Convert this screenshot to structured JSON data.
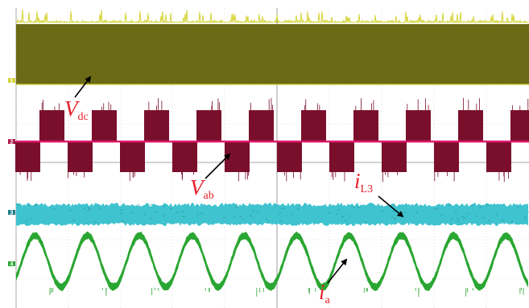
{
  "chart_data": {
    "type": "line",
    "title": "",
    "xlabel": "",
    "ylabel": "",
    "grid": true,
    "series": [
      {
        "name": "Vdc",
        "shape": "dc",
        "color": "#6b6b16",
        "edge_color": "#d6d43a",
        "channel_marker": "1",
        "marker_color": "#d6d43a"
      },
      {
        "name": "Vab",
        "shape": "bipolar-pwm",
        "color": "#7a0f2c",
        "edge_color": "#e0176a",
        "periods_shown": 10,
        "channel_marker": "2",
        "marker_color": "#b0184a"
      },
      {
        "name": "iL3",
        "shape": "dc-ripple",
        "color": "#3fc3cf",
        "channel_marker": "3",
        "marker_color": "#1a7d87"
      },
      {
        "name": "ia",
        "shape": "sinusoid",
        "color": "#2aa632",
        "periods_shown": 10,
        "channel_marker": "4",
        "marker_color": "#2aa632"
      }
    ],
    "annotations": [
      {
        "series": "Vdc",
        "main": "V",
        "sub": "dc"
      },
      {
        "series": "Vab",
        "main": "V",
        "sub": "ab"
      },
      {
        "series": "iL3",
        "main": "i",
        "sub": "L3"
      },
      {
        "series": "ia",
        "main": "i",
        "sub": "a"
      }
    ]
  }
}
